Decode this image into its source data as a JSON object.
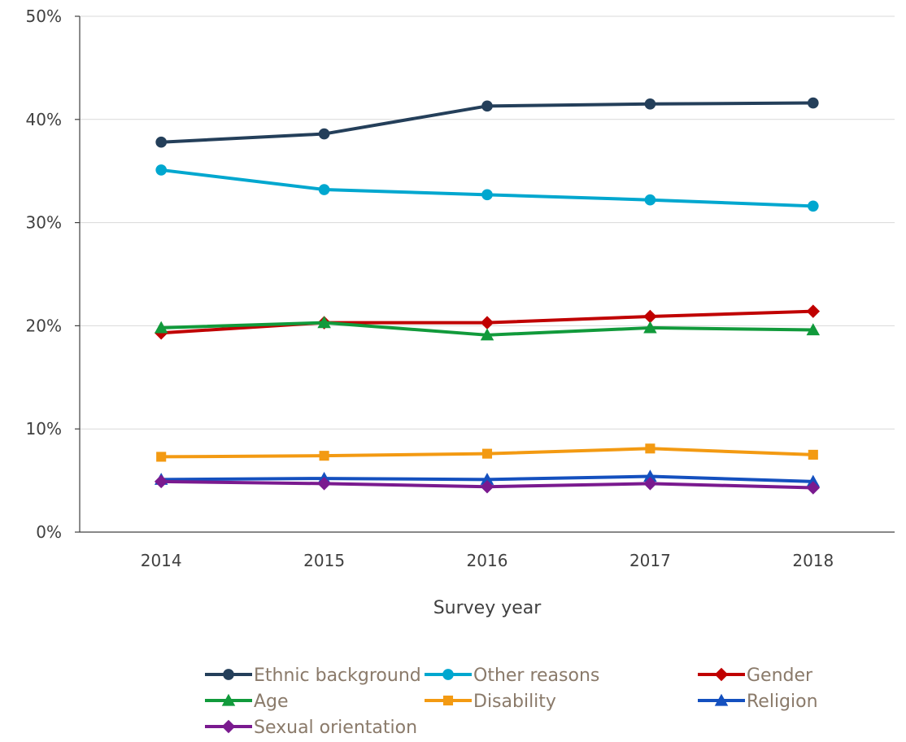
{
  "chart_data": {
    "type": "line",
    "title": "",
    "xlabel": "Survey year",
    "ylabel": "",
    "categories": [
      "2014",
      "2015",
      "2016",
      "2017",
      "2018"
    ],
    "ylim": [
      0,
      50
    ],
    "yticks": [
      0,
      10,
      20,
      30,
      40,
      50
    ],
    "ytick_labels": [
      "0%",
      "10%",
      "20%",
      "30%",
      "40%",
      "50%"
    ],
    "grid": "horizontal",
    "legend_position": "bottom",
    "series": [
      {
        "name": "Ethnic background",
        "color": "#243f5a",
        "marker": "circle",
        "values": [
          37.8,
          38.6,
          41.3,
          41.5,
          41.6
        ]
      },
      {
        "name": "Other reasons",
        "color": "#00a7cf",
        "marker": "circle",
        "values": [
          35.1,
          33.2,
          32.7,
          32.2,
          31.6
        ]
      },
      {
        "name": "Gender",
        "color": "#c00000",
        "marker": "diamond",
        "values": [
          19.3,
          20.3,
          20.3,
          20.9,
          21.4
        ]
      },
      {
        "name": "Age",
        "color": "#119a3b",
        "marker": "triangle",
        "values": [
          19.8,
          20.3,
          19.1,
          19.8,
          19.6
        ]
      },
      {
        "name": "Disability",
        "color": "#f39a12",
        "marker": "square",
        "values": [
          7.3,
          7.4,
          7.6,
          8.1,
          7.5
        ]
      },
      {
        "name": "Religion",
        "color": "#1450bf",
        "marker": "triangle",
        "values": [
          5.1,
          5.2,
          5.1,
          5.4,
          4.9
        ]
      },
      {
        "name": "Sexual orientation",
        "color": "#7a1a8f",
        "marker": "diamond",
        "values": [
          4.9,
          4.7,
          4.4,
          4.7,
          4.3
        ]
      }
    ]
  }
}
